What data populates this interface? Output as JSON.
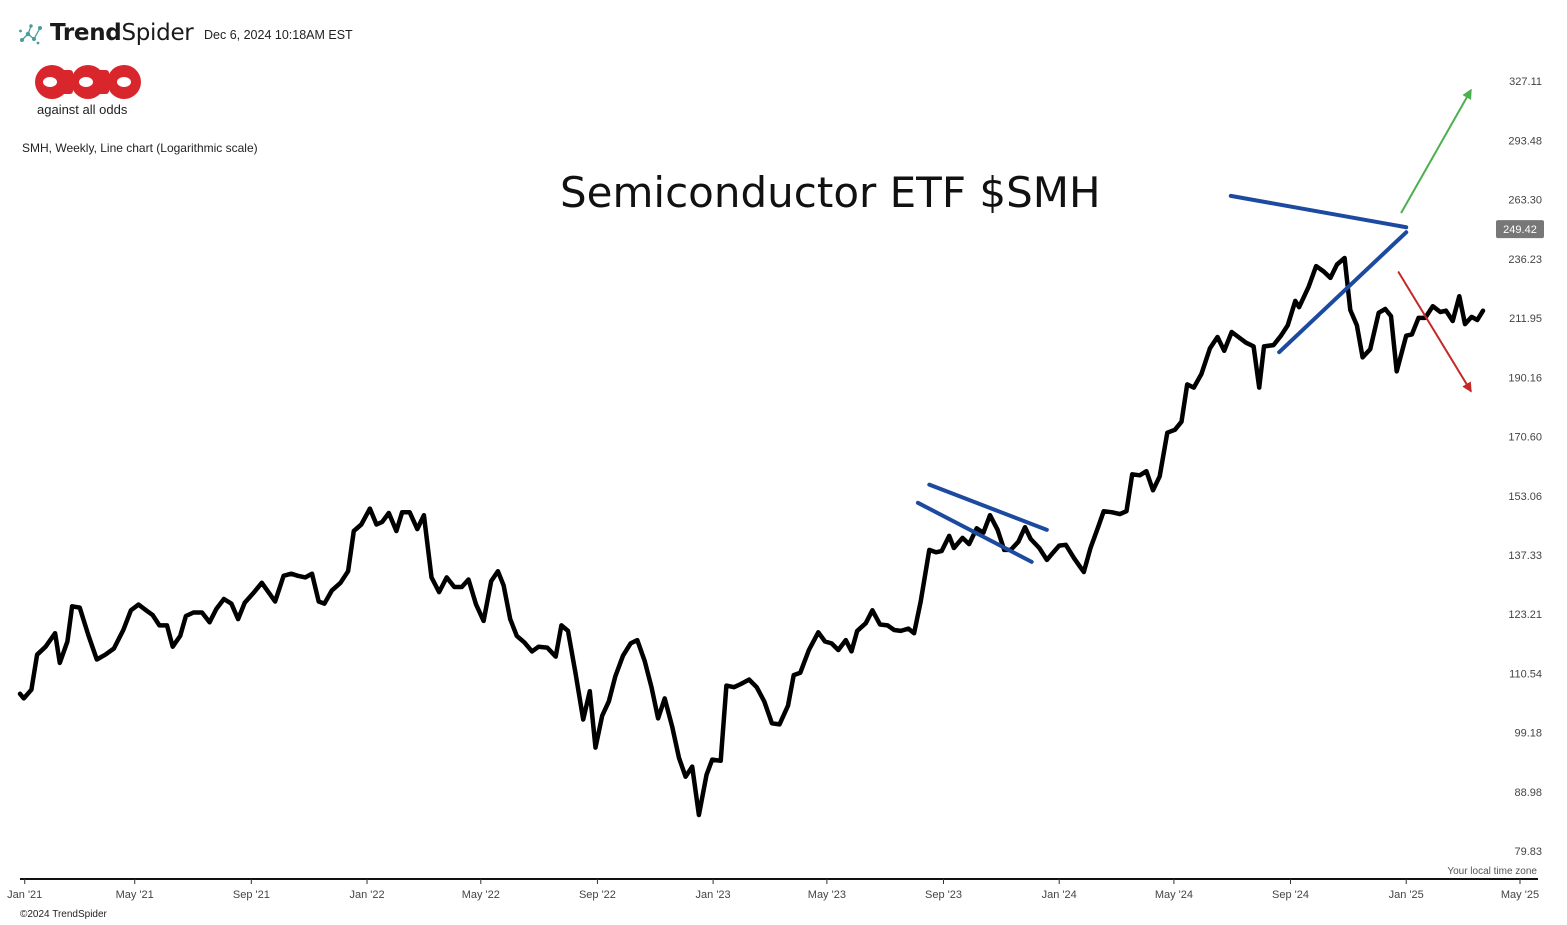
{
  "brand": {
    "name_bold": "Trend",
    "name_light": "Spider",
    "timestamp": "Dec 6, 2024 10:18AM EST",
    "copyright": "©2024 TrendSpider",
    "timezone_note": "Your local time zone"
  },
  "logo": {
    "tagline": "against all odds",
    "color": "#d9262c"
  },
  "chart_description": "SMH, Weekly, Line chart (Logarithmic scale)",
  "headline": "Semiconductor ETF $SMH",
  "colors": {
    "price_line": "#000000",
    "trendlines": "#1c4aa0",
    "up_arrow": "#4caf50",
    "down_arrow": "#c62828",
    "last_price_badge": "#777777"
  },
  "chart_data": {
    "type": "line",
    "ticker": "SMH",
    "interval": "Weekly",
    "scale": "log",
    "ylim": [
      76,
      340
    ],
    "x_range": [
      "2020-12-31",
      "2025-05-20"
    ],
    "last_price": 249.42,
    "last_price_label": "249.42",
    "y_ticks": [
      {
        "value": 327.11,
        "label": "327.11"
      },
      {
        "value": 293.48,
        "label": "293.48"
      },
      {
        "value": 263.3,
        "label": "263.30"
      },
      {
        "value": 236.23,
        "label": "236.23"
      },
      {
        "value": 211.95,
        "label": "211.95"
      },
      {
        "value": 190.16,
        "label": "190.16"
      },
      {
        "value": 170.6,
        "label": "170.60"
      },
      {
        "value": 153.06,
        "label": "153.06"
      },
      {
        "value": 137.33,
        "label": "137.33"
      },
      {
        "value": 123.21,
        "label": "123.21"
      },
      {
        "value": 110.54,
        "label": "110.54"
      },
      {
        "value": 99.18,
        "label": "99.18"
      },
      {
        "value": 88.98,
        "label": "88.98"
      },
      {
        "value": 79.83,
        "label": "79.83"
      }
    ],
    "x_ticks": [
      {
        "date": "2021-01-05",
        "label": "Jan '21"
      },
      {
        "date": "2021-05-01",
        "label": "May '21"
      },
      {
        "date": "2021-09-01",
        "label": "Sep '21"
      },
      {
        "date": "2022-01-01",
        "label": "Jan '22"
      },
      {
        "date": "2022-05-01",
        "label": "May '22"
      },
      {
        "date": "2022-09-01",
        "label": "Sep '22"
      },
      {
        "date": "2023-01-01",
        "label": "Jan '23"
      },
      {
        "date": "2023-05-01",
        "label": "May '23"
      },
      {
        "date": "2023-09-01",
        "label": "Sep '23"
      },
      {
        "date": "2024-01-01",
        "label": "Jan '24"
      },
      {
        "date": "2024-05-01",
        "label": "May '24"
      },
      {
        "date": "2024-09-01",
        "label": "Sep '24"
      },
      {
        "date": "2025-01-01",
        "label": "Jan '25"
      },
      {
        "date": "2025-05-01",
        "label": "May '25"
      }
    ],
    "series": [
      {
        "values": [
          [
            "2020-12-31",
            106.5
          ],
          [
            "2021-01-04",
            105.6
          ],
          [
            "2021-01-12",
            107.3
          ],
          [
            "2021-01-18",
            114.4
          ],
          [
            "2021-01-27",
            116.1
          ],
          [
            "2021-02-06",
            119.0
          ],
          [
            "2021-02-11",
            112.7
          ],
          [
            "2021-02-19",
            117.2
          ],
          [
            "2021-02-24",
            125.0
          ],
          [
            "2021-03-04",
            124.7
          ],
          [
            "2021-03-13",
            118.6
          ],
          [
            "2021-03-22",
            113.4
          ],
          [
            "2021-03-31",
            114.4
          ],
          [
            "2021-04-09",
            115.7
          ],
          [
            "2021-04-19",
            119.7
          ],
          [
            "2021-04-27",
            124.1
          ],
          [
            "2021-05-05",
            125.4
          ],
          [
            "2021-05-13",
            124.1
          ],
          [
            "2021-05-20",
            123.0
          ],
          [
            "2021-05-27",
            120.7
          ],
          [
            "2021-06-04",
            120.7
          ],
          [
            "2021-06-10",
            116.1
          ],
          [
            "2021-06-18",
            118.4
          ],
          [
            "2021-06-24",
            122.8
          ],
          [
            "2021-07-02",
            123.6
          ],
          [
            "2021-07-11",
            123.6
          ],
          [
            "2021-07-19",
            121.4
          ],
          [
            "2021-07-26",
            124.4
          ],
          [
            "2021-08-03",
            126.7
          ],
          [
            "2021-08-11",
            125.6
          ],
          [
            "2021-08-18",
            122.1
          ],
          [
            "2021-08-25",
            125.8
          ],
          [
            "2021-09-04",
            128.3
          ],
          [
            "2021-09-12",
            130.5
          ],
          [
            "2021-09-19",
            128.3
          ],
          [
            "2021-09-26",
            126.1
          ],
          [
            "2021-10-05",
            132.2
          ],
          [
            "2021-10-13",
            132.7
          ],
          [
            "2021-10-20",
            132.2
          ],
          [
            "2021-10-28",
            131.8
          ],
          [
            "2021-11-04",
            132.7
          ],
          [
            "2021-11-11",
            126.1
          ],
          [
            "2021-11-17",
            125.6
          ],
          [
            "2021-11-25",
            128.7
          ],
          [
            "2021-12-04",
            130.5
          ],
          [
            "2021-12-12",
            133.3
          ],
          [
            "2021-12-18",
            143.5
          ],
          [
            "2021-12-26",
            145.2
          ],
          [
            "2022-01-04",
            149.5
          ],
          [
            "2022-01-11",
            145.2
          ],
          [
            "2022-01-17",
            145.9
          ],
          [
            "2022-01-24",
            148.3
          ],
          [
            "2022-02-01",
            143.5
          ],
          [
            "2022-02-07",
            148.5
          ],
          [
            "2022-02-15",
            148.5
          ],
          [
            "2022-02-23",
            144.0
          ],
          [
            "2022-03-02",
            147.7
          ],
          [
            "2022-03-10",
            131.8
          ],
          [
            "2022-03-18",
            128.3
          ],
          [
            "2022-03-26",
            131.8
          ],
          [
            "2022-04-03",
            129.5
          ],
          [
            "2022-04-11",
            129.5
          ],
          [
            "2022-04-18",
            131.3
          ],
          [
            "2022-04-26",
            125.4
          ],
          [
            "2022-05-04",
            121.7
          ],
          [
            "2022-05-12",
            130.9
          ],
          [
            "2022-05-19",
            133.3
          ],
          [
            "2022-05-25",
            129.9
          ],
          [
            "2022-06-01",
            122.1
          ],
          [
            "2022-06-08",
            118.4
          ],
          [
            "2022-06-16",
            117.0
          ],
          [
            "2022-06-24",
            115.1
          ],
          [
            "2022-07-01",
            116.1
          ],
          [
            "2022-07-10",
            115.9
          ],
          [
            "2022-07-19",
            114.0
          ],
          [
            "2022-07-25",
            120.7
          ],
          [
            "2022-08-01",
            119.5
          ],
          [
            "2022-08-09",
            110.5
          ],
          [
            "2022-08-17",
            101.6
          ],
          [
            "2022-08-24",
            107.0
          ],
          [
            "2022-08-30",
            96.5
          ],
          [
            "2022-09-06",
            102.3
          ],
          [
            "2022-09-13",
            105.0
          ],
          [
            "2022-09-20",
            110.0
          ],
          [
            "2022-09-28",
            114.2
          ],
          [
            "2022-10-06",
            116.8
          ],
          [
            "2022-10-13",
            117.5
          ],
          [
            "2022-10-21",
            113.0
          ],
          [
            "2022-10-28",
            107.8
          ],
          [
            "2022-11-04",
            101.8
          ],
          [
            "2022-11-11",
            105.6
          ],
          [
            "2022-11-19",
            100.2
          ],
          [
            "2022-11-26",
            94.7
          ],
          [
            "2022-12-03",
            91.5
          ],
          [
            "2022-12-10",
            93.2
          ],
          [
            "2022-12-17",
            85.3
          ],
          [
            "2022-12-25",
            91.8
          ],
          [
            "2022-12-31",
            94.4
          ],
          [
            "2023-01-09",
            94.2
          ],
          [
            "2023-01-15",
            108.1
          ],
          [
            "2023-01-23",
            107.8
          ],
          [
            "2023-01-30",
            108.4
          ],
          [
            "2023-02-08",
            109.3
          ],
          [
            "2023-02-16",
            107.8
          ],
          [
            "2023-02-24",
            105.0
          ],
          [
            "2023-03-04",
            100.9
          ],
          [
            "2023-03-12",
            100.7
          ],
          [
            "2023-03-21",
            104.2
          ],
          [
            "2023-03-27",
            110.2
          ],
          [
            "2023-04-03",
            110.7
          ],
          [
            "2023-04-12",
            115.4
          ],
          [
            "2023-04-22",
            119.2
          ],
          [
            "2023-04-29",
            117.2
          ],
          [
            "2023-05-06",
            116.8
          ],
          [
            "2023-05-13",
            115.4
          ],
          [
            "2023-05-21",
            117.5
          ],
          [
            "2023-05-27",
            115.1
          ],
          [
            "2023-06-02",
            119.5
          ],
          [
            "2023-06-11",
            121.2
          ],
          [
            "2023-06-18",
            124.1
          ],
          [
            "2023-06-26",
            120.9
          ],
          [
            "2023-07-04",
            120.7
          ],
          [
            "2023-07-11",
            119.7
          ],
          [
            "2023-07-18",
            119.5
          ],
          [
            "2023-07-26",
            120.0
          ],
          [
            "2023-08-01",
            119.0
          ],
          [
            "2023-08-08",
            126.1
          ],
          [
            "2023-08-17",
            138.6
          ],
          [
            "2023-08-24",
            138.0
          ],
          [
            "2023-08-30",
            138.3
          ],
          [
            "2023-09-07",
            142.2
          ],
          [
            "2023-09-12",
            139.1
          ],
          [
            "2023-09-21",
            141.7
          ],
          [
            "2023-09-28",
            140.1
          ],
          [
            "2023-10-06",
            144.2
          ],
          [
            "2023-10-13",
            143.0
          ],
          [
            "2023-10-20",
            147.7
          ],
          [
            "2023-10-28",
            143.8
          ],
          [
            "2023-11-04",
            138.6
          ],
          [
            "2023-11-11",
            138.6
          ],
          [
            "2023-11-19",
            140.7
          ],
          [
            "2023-11-26",
            144.5
          ],
          [
            "2023-12-02",
            141.4
          ],
          [
            "2023-12-11",
            139.1
          ],
          [
            "2023-12-19",
            136.1
          ],
          [
            "2023-12-24",
            137.5
          ],
          [
            "2024-01-01",
            139.7
          ],
          [
            "2024-01-08",
            139.9
          ],
          [
            "2024-01-17",
            136.4
          ],
          [
            "2024-01-23",
            134.4
          ],
          [
            "2024-01-27",
            133.1
          ],
          [
            "2024-02-03",
            139.1
          ],
          [
            "2024-02-11",
            144.5
          ],
          [
            "2024-02-17",
            148.8
          ],
          [
            "2024-02-26",
            148.5
          ],
          [
            "2024-03-05",
            148.0
          ],
          [
            "2024-03-12",
            148.8
          ],
          [
            "2024-03-18",
            159.2
          ],
          [
            "2024-03-26",
            158.9
          ],
          [
            "2024-04-02",
            160.1
          ],
          [
            "2024-04-09",
            154.6
          ],
          [
            "2024-04-16",
            158.6
          ],
          [
            "2024-04-24",
            171.8
          ],
          [
            "2024-05-02",
            172.7
          ],
          [
            "2024-05-09",
            175.3
          ],
          [
            "2024-05-15",
            187.7
          ],
          [
            "2024-05-22",
            186.6
          ],
          [
            "2024-05-30",
            191.3
          ],
          [
            "2024-06-08",
            200.5
          ],
          [
            "2024-06-16",
            204.7
          ],
          [
            "2024-06-23",
            199.6
          ],
          [
            "2024-07-01",
            206.6
          ],
          [
            "2024-07-08",
            204.7
          ],
          [
            "2024-07-16",
            202.6
          ],
          [
            "2024-07-24",
            201.2
          ],
          [
            "2024-07-30",
            186.6
          ],
          [
            "2024-08-04",
            201.2
          ],
          [
            "2024-08-14",
            201.7
          ],
          [
            "2024-08-22",
            205.2
          ],
          [
            "2024-08-29",
            209.1
          ],
          [
            "2024-09-06",
            218.7
          ],
          [
            "2024-09-10",
            216.2
          ],
          [
            "2024-09-20",
            224.3
          ],
          [
            "2024-09-28",
            233.1
          ],
          [
            "2024-10-06",
            230.8
          ],
          [
            "2024-10-13",
            228.1
          ],
          [
            "2024-10-20",
            233.8
          ],
          [
            "2024-10-28",
            236.6
          ],
          [
            "2024-11-03",
            215.1
          ],
          [
            "2024-11-10",
            209.1
          ],
          [
            "2024-11-16",
            197.2
          ],
          [
            "2024-11-24",
            200.2
          ],
          [
            "2024-12-03",
            214.0
          ],
          [
            "2024-12-10",
            215.5
          ],
          [
            "2024-12-16",
            212.7
          ],
          [
            "2024-12-22",
            192.2
          ],
          [
            "2025-01-01",
            205.2
          ],
          [
            "2025-01-07",
            205.7
          ],
          [
            "2025-01-14",
            212.0
          ],
          [
            "2025-01-21",
            212.0
          ],
          [
            "2025-01-29",
            216.6
          ],
          [
            "2025-02-06",
            214.3
          ],
          [
            "2025-02-12",
            214.8
          ],
          [
            "2025-02-19",
            210.8
          ],
          [
            "2025-02-26",
            220.6
          ],
          [
            "2025-03-04",
            209.6
          ],
          [
            "2025-03-11",
            212.4
          ],
          [
            "2025-03-17",
            211.2
          ],
          [
            "2025-03-23",
            214.8
          ]
        ]
      }
    ],
    "annotations": {
      "pennant_upper": [
        [
          "2023-08-17",
          156.2
        ],
        [
          "2023-12-19",
          143.8
        ]
      ],
      "pennant_lower": [
        [
          "2023-08-05",
          151.1
        ],
        [
          "2023-12-03",
          135.6
        ]
      ],
      "triangle_upper": [
        [
          "2024-06-30",
          265.1
        ],
        [
          "2025-01-01",
          250.3
        ]
      ],
      "triangle_lower": [
        [
          "2024-08-20",
          199.1
        ],
        [
          "2025-01-01",
          248.0
        ]
      ],
      "breakout_up_arrow": [
        [
          "2024-12-27",
          257.2
        ],
        [
          "2025-03-10",
          321.5
        ]
      ],
      "breakdown_down_arrow": [
        [
          "2024-12-24",
          230.5
        ],
        [
          "2025-03-10",
          185.5
        ]
      ]
    }
  }
}
